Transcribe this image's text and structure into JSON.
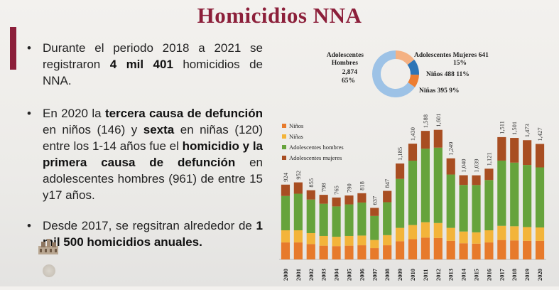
{
  "slide": {
    "title": "Homicidios NNA"
  },
  "bullets": [
    {
      "parts": [
        {
          "t": "Durante el periodo 2018 a 2021 se registraron ",
          "b": false
        },
        {
          "t": "4 mil 401",
          "b": true
        },
        {
          "t": " homicidios de NNA.",
          "b": false
        }
      ]
    },
    {
      "parts": [
        {
          "t": "En 2020 la ",
          "b": false
        },
        {
          "t": "tercera causa de defunción",
          "b": true
        },
        {
          "t": " en niños (146) y ",
          "b": false
        },
        {
          "t": "sexta",
          "b": true
        },
        {
          "t": " en niñas (120) entre los 1-14 años fue el ",
          "b": false
        },
        {
          "t": "homicidio y la primera causa de defunción",
          "b": true
        },
        {
          "t": " en adolescentes hombres (961) de entre 15  y17 años.",
          "b": false
        }
      ]
    },
    {
      "parts": [
        {
          "t": "Desde 2017, se regsitran alrededor de ",
          "b": false
        },
        {
          "t": "1 mil 500 homicidios anuales.",
          "b": true
        }
      ]
    }
  ],
  "colors": {
    "title": "#8c1f3a",
    "ninos": "#e77a2b",
    "ninas": "#f3b43a",
    "adolescentes_hombres": "#66a33c",
    "adolescentes_mujeres": "#a84e22",
    "donut_hombres": "#9dc2e6",
    "donut_mujeres": "#f4b183",
    "donut_ninos": "#2e75b6",
    "donut_ninas": "#ed7d31"
  },
  "chart_data": [
    {
      "type": "pie",
      "variant": "donut",
      "slices": [
        {
          "name": "Adolescentes Hombres",
          "value": 2874,
          "value_label": "2,874",
          "percent_label": "65%"
        },
        {
          "name": "Adolescentes Mujeres",
          "value": 641,
          "value_label": "641",
          "percent_label": "15%"
        },
        {
          "name": "Niños",
          "value": 488,
          "value_label": "488",
          "percent_label": "11%"
        },
        {
          "name": "Niñas",
          "value": 395,
          "value_label": "395",
          "percent_label": "9%"
        }
      ]
    },
    {
      "type": "bar",
      "stacked": true,
      "categories": [
        "2000",
        "2001",
        "2002",
        "2003",
        "2004",
        "2005",
        "2006",
        "2007",
        "2008",
        "2009",
        "2010",
        "2011",
        "2012",
        "2013",
        "2014",
        "2015",
        "2016",
        "2017",
        "2018",
        "2019",
        "2020"
      ],
      "series": [
        {
          "name": "Niños",
          "values": [
            210,
            210,
            190,
            170,
            165,
            170,
            175,
            140,
            175,
            225,
            250,
            270,
            265,
            230,
            200,
            195,
            210,
            240,
            235,
            230,
            230
          ]
        },
        {
          "name": "Niñas",
          "values": [
            150,
            150,
            135,
            120,
            115,
            120,
            120,
            100,
            125,
            165,
            175,
            190,
            185,
            160,
            145,
            140,
            150,
            175,
            175,
            170,
            165
          ]
        },
        {
          "name": "Adolescentes hombres",
          "values": [
            424,
            452,
            415,
            398,
            375,
            390,
            408,
            297,
            407,
            605,
            795,
            908,
            931,
            659,
            575,
            584,
            621,
            806,
            786,
            767,
            742
          ]
        },
        {
          "name": "Adolescentes mujeres",
          "values": [
            140,
            140,
            115,
            110,
            110,
            110,
            115,
            100,
            140,
            190,
            210,
            220,
            220,
            200,
            120,
            120,
            140,
            290,
            305,
            306,
            290
          ]
        }
      ],
      "totals": [
        924,
        952,
        855,
        798,
        765,
        790,
        818,
        637,
        847,
        1185,
        1430,
        1588,
        1601,
        1249,
        1040,
        1039,
        1121,
        1511,
        1501,
        1473,
        1427
      ],
      "total_labels": [
        "924",
        "952",
        "855",
        "798",
        "765",
        "790",
        "818",
        "637",
        "847",
        "1,185",
        "1,430",
        "1,588",
        "1,601",
        "1,249",
        "1,040",
        "1,039",
        "1,121",
        "1,511",
        "1,501",
        "1,473",
        "1,427"
      ],
      "legend": [
        "Niños",
        "Niñas",
        "Adolescentes hombres",
        "Adolescentes mujeres"
      ],
      "legend_position": "top-left",
      "ylim": [
        0,
        1800
      ],
      "grid": false
    }
  ]
}
